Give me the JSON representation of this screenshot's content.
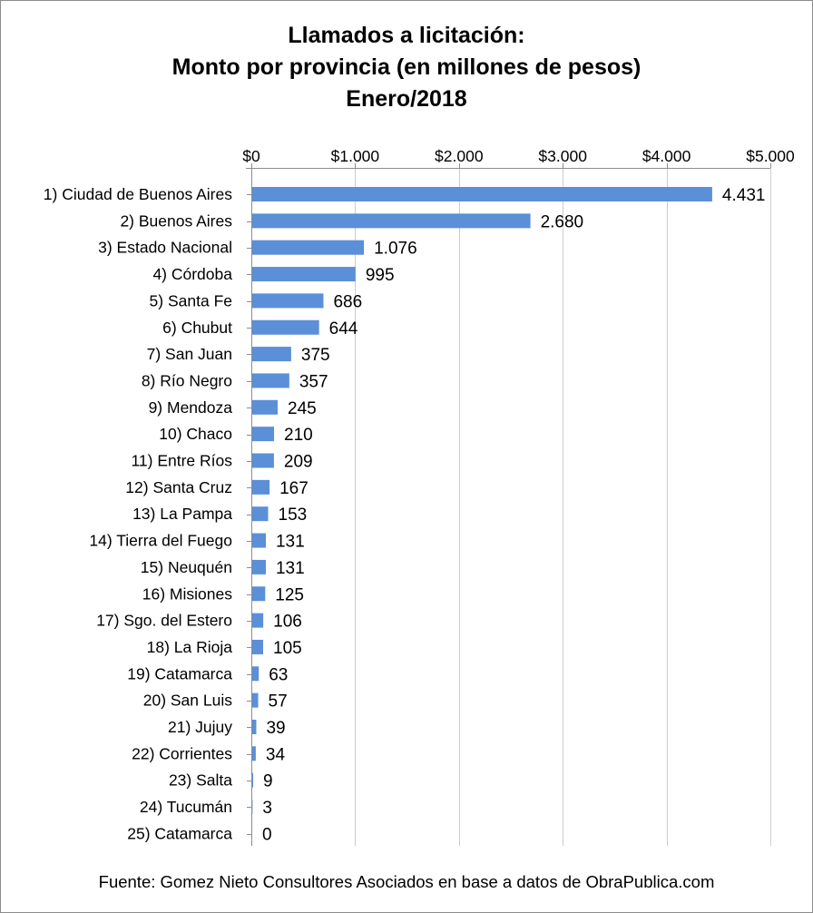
{
  "title": {
    "line1": "Llamados a licitación:",
    "line2": "Monto por provincia (en millones de pesos)",
    "line3": "Enero/2018"
  },
  "footer": "Fuente: Gomez Nieto Consultores Asociados en base a datos de ObraPublica.com",
  "colors": {
    "bar": "#5b8fd8",
    "grid": "#cccccc",
    "axis": "#8c8c8c"
  },
  "chart_data": {
    "type": "bar",
    "orientation": "horizontal",
    "xlim": [
      0,
      5000
    ],
    "x_ticks": [
      0,
      1000,
      2000,
      3000,
      4000,
      5000
    ],
    "x_tick_labels": [
      "$0",
      "$1.000",
      "$2.000",
      "$3.000",
      "$4.000",
      "$5.000"
    ],
    "x_axis_position": "top",
    "grid": true,
    "categories": [
      "1) Ciudad de Buenos Aires",
      "2) Buenos Aires",
      "3) Estado Nacional",
      "4) Córdoba",
      "5) Santa Fe",
      "6) Chubut",
      "7) San Juan",
      "8) Río Negro",
      "9) Mendoza",
      "10) Chaco",
      "11) Entre Ríos",
      "12) Santa Cruz",
      "13) La Pampa",
      "14) Tierra del Fuego",
      "15) Neuquén",
      "16) Misiones",
      "17) Sgo. del Estero",
      "18) La Rioja",
      "19) Catamarca",
      "20) San Luis",
      "21) Jujuy",
      "22) Corrientes",
      "23) Salta",
      "24) Tucumán",
      "25) Catamarca"
    ],
    "values": [
      4431,
      2680,
      1076,
      995,
      686,
      644,
      375,
      357,
      245,
      210,
      209,
      167,
      153,
      131,
      131,
      125,
      106,
      105,
      63,
      57,
      39,
      34,
      9,
      3,
      0
    ],
    "data_labels": [
      "4.431",
      "2.680",
      "1.076",
      "995",
      "686",
      "644",
      "375",
      "357",
      "245",
      "210",
      "209",
      "167",
      "153",
      "131",
      "131",
      "125",
      "106",
      "105",
      "63",
      "57",
      "39",
      "34",
      "9",
      "3",
      "0"
    ]
  }
}
